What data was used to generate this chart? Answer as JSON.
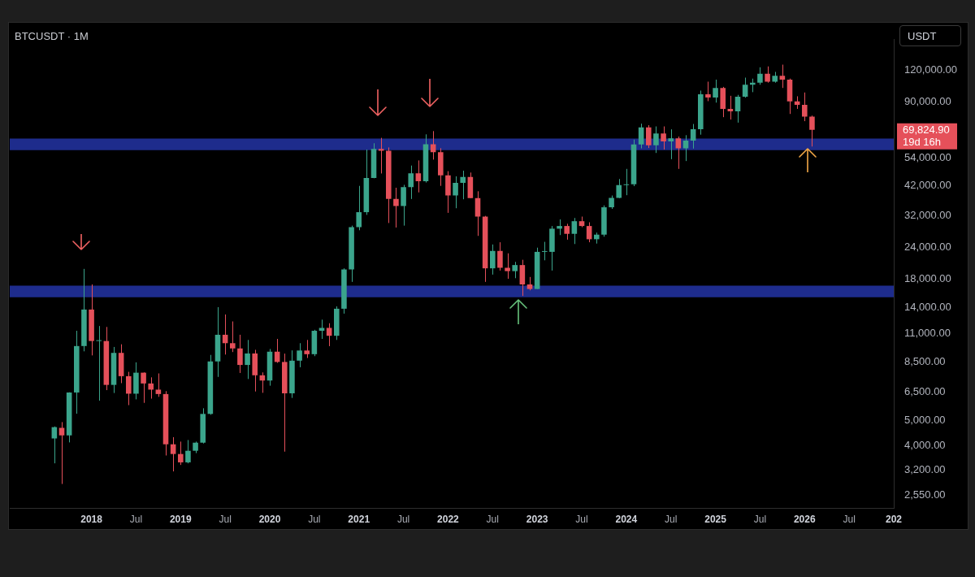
{
  "chart_data": {
    "type": "candlestick",
    "title": "BTCUSDT · 1M",
    "ylabel": "USDT",
    "log": true,
    "x": [
      "2017-08",
      "2017-09",
      "2017-10",
      "2017-11",
      "2017-12",
      "2018-01",
      "2018-02",
      "2018-03",
      "2018-04",
      "2018-05",
      "2018-06",
      "2018-07",
      "2018-08",
      "2018-09",
      "2018-10",
      "2018-11",
      "2018-12",
      "2019-01",
      "2019-02",
      "2019-03",
      "2019-04",
      "2019-05",
      "2019-06",
      "2019-07",
      "2019-08",
      "2019-09",
      "2019-10",
      "2019-11",
      "2019-12",
      "2020-01",
      "2020-02",
      "2020-03",
      "2020-04",
      "2020-05",
      "2020-06",
      "2020-07",
      "2020-08",
      "2020-09",
      "2020-10",
      "2020-11",
      "2020-12",
      "2021-01",
      "2021-02",
      "2021-03",
      "2021-04",
      "2021-05",
      "2021-06",
      "2021-07",
      "2021-08",
      "2021-09",
      "2021-10",
      "2021-11",
      "2021-12",
      "2022-01",
      "2022-02",
      "2022-03",
      "2022-04",
      "2022-05",
      "2022-06",
      "2022-07",
      "2022-08",
      "2022-09",
      "2022-10",
      "2022-11",
      "2022-12",
      "2023-01",
      "2023-02",
      "2023-03",
      "2023-04",
      "2023-05",
      "2023-06",
      "2023-07",
      "2023-08",
      "2023-09",
      "2023-10",
      "2023-11",
      "2023-12",
      "2024-01",
      "2024-02",
      "2024-03",
      "2024-04",
      "2024-05",
      "2024-06",
      "2024-07",
      "2024-08",
      "2024-09",
      "2024-10",
      "2024-11",
      "2024-12",
      "2025-01",
      "2025-02",
      "2025-03",
      "2025-04",
      "2025-05",
      "2025-06",
      "2025-07",
      "2025-08",
      "2025-09",
      "2025-10",
      "2025-11",
      "2025-12",
      "2026-01",
      "2026-02"
    ],
    "ohlc": [
      [
        4260,
        4750,
        3400,
        4720
      ],
      [
        4690,
        4940,
        2820,
        4380
      ],
      [
        4380,
        6470,
        4110,
        6460
      ],
      [
        6460,
        11300,
        5330,
        9840
      ],
      [
        9840,
        19800,
        9380,
        13700
      ],
      [
        13700,
        17200,
        9040,
        10300
      ],
      [
        10300,
        11800,
        6000,
        10300
      ],
      [
        10300,
        11700,
        6600,
        6920
      ],
      [
        6920,
        9760,
        6430,
        9250
      ],
      [
        9250,
        10000,
        7030,
        7490
      ],
      [
        7490,
        7790,
        5760,
        6390
      ],
      [
        6390,
        8490,
        6070,
        7730
      ],
      [
        7730,
        7750,
        5880,
        7010
      ],
      [
        7010,
        7410,
        6110,
        6630
      ],
      [
        6630,
        7680,
        6210,
        6370
      ],
      [
        6370,
        6540,
        3650,
        4040
      ],
      [
        4040,
        4310,
        3160,
        3700
      ],
      [
        3700,
        4140,
        3350,
        3430
      ],
      [
        3430,
        4200,
        3400,
        3810
      ],
      [
        3810,
        4140,
        3730,
        4100
      ],
      [
        4100,
        5600,
        4070,
        5320
      ],
      [
        5320,
        9080,
        5280,
        8560
      ],
      [
        8560,
        14000,
        7440,
        10900
      ],
      [
        10900,
        13100,
        9110,
        10100
      ],
      [
        10100,
        12300,
        9320,
        9630
      ],
      [
        9630,
        10900,
        7710,
        8290
      ],
      [
        8290,
        10400,
        7300,
        9200
      ],
      [
        9200,
        9510,
        6520,
        7550
      ],
      [
        7550,
        7750,
        6440,
        7200
      ],
      [
        7200,
        9580,
        6870,
        9350
      ],
      [
        9350,
        10500,
        8450,
        8520
      ],
      [
        8520,
        9190,
        3780,
        6410
      ],
      [
        6410,
        9460,
        6150,
        8620
      ],
      [
        8620,
        10100,
        8120,
        9450
      ],
      [
        9450,
        10400,
        8830,
        9140
      ],
      [
        9140,
        11400,
        8980,
        11300
      ],
      [
        11300,
        12500,
        10500,
        11600
      ],
      [
        11600,
        12100,
        9830,
        10800
      ],
      [
        10800,
        14100,
        10400,
        13800
      ],
      [
        13800,
        19900,
        13200,
        19700
      ],
      [
        19700,
        29300,
        17600,
        28900
      ],
      [
        28900,
        42000,
        28100,
        33100
      ],
      [
        33100,
        58400,
        32300,
        45100
      ],
      [
        45100,
        61800,
        45000,
        58700
      ],
      [
        58700,
        64900,
        47000,
        57700
      ],
      [
        57700,
        59500,
        30000,
        37300
      ],
      [
        37300,
        41300,
        28800,
        35000
      ],
      [
        35000,
        42400,
        29300,
        41500
      ],
      [
        41500,
        50500,
        37300,
        47100
      ],
      [
        47100,
        52900,
        39600,
        43800
      ],
      [
        43800,
        67000,
        43300,
        61300
      ],
      [
        61300,
        69000,
        53300,
        57000
      ],
      [
        57000,
        59100,
        42000,
        46200
      ],
      [
        46200,
        48000,
        32900,
        38500
      ],
      [
        38500,
        45800,
        34300,
        43200
      ],
      [
        43200,
        48200,
        37200,
        45500
      ],
      [
        45500,
        47400,
        37600,
        37600
      ],
      [
        37600,
        40000,
        26700,
        31800
      ],
      [
        31800,
        32000,
        17600,
        19900
      ],
      [
        19900,
        24700,
        18800,
        23300
      ],
      [
        23300,
        25200,
        19500,
        20000
      ],
      [
        20000,
        22800,
        18100,
        19400
      ],
      [
        19400,
        21100,
        18200,
        20500
      ],
      [
        20500,
        21500,
        15500,
        17200
      ],
      [
        17200,
        18400,
        16300,
        16500
      ],
      [
        16500,
        24000,
        16500,
        23100
      ],
      [
        23100,
        25300,
        21400,
        23100
      ],
      [
        23100,
        29200,
        19500,
        28500
      ],
      [
        28500,
        31000,
        26900,
        29200
      ],
      [
        29200,
        29800,
        25800,
        27200
      ],
      [
        27200,
        31400,
        24800,
        30500
      ],
      [
        30500,
        31800,
        28900,
        29200
      ],
      [
        29200,
        30200,
        25200,
        25900
      ],
      [
        25900,
        27500,
        24900,
        27000
      ],
      [
        27000,
        35200,
        26500,
        34600
      ],
      [
        34600,
        38500,
        34100,
        37700
      ],
      [
        37700,
        44700,
        37600,
        42300
      ],
      [
        42300,
        49000,
        38600,
        42600
      ],
      [
        42600,
        63900,
        41900,
        61100
      ],
      [
        61100,
        73800,
        59000,
        71300
      ],
      [
        71300,
        72800,
        59200,
        60700
      ],
      [
        60700,
        72000,
        56600,
        67500
      ],
      [
        67500,
        72000,
        58400,
        62800
      ],
      [
        62800,
        70100,
        53500,
        64600
      ],
      [
        64600,
        65700,
        49000,
        59000
      ],
      [
        59000,
        66500,
        52600,
        63300
      ],
      [
        63300,
        73600,
        58900,
        70200
      ],
      [
        70200,
        99600,
        66800,
        96400
      ],
      [
        96400,
        108000,
        90500,
        93600
      ],
      [
        93600,
        110000,
        89300,
        102000
      ],
      [
        102000,
        103000,
        78300,
        84400
      ],
      [
        84400,
        95000,
        76600,
        82600
      ],
      [
        82600,
        95800,
        74500,
        94200
      ],
      [
        94200,
        112000,
        93400,
        105000
      ],
      [
        105000,
        111000,
        98200,
        107000
      ],
      [
        107000,
        123000,
        105000,
        116000
      ],
      [
        116000,
        124000,
        107000,
        108000
      ],
      [
        108000,
        118000,
        107000,
        114000
      ],
      [
        114000,
        126000,
        102000,
        110000
      ],
      [
        110000,
        111000,
        80600,
        90400
      ],
      [
        90400,
        94600,
        84400,
        87600
      ],
      [
        87600,
        97900,
        75500,
        78700
      ],
      [
        78700,
        79400,
        60000,
        69824.9
      ]
    ],
    "colors": [
      "#3ba58c",
      "#e5505a",
      "#3ba58c",
      "#3ba58c",
      "#3ba58c",
      "#e5505a",
      "#3ba58c",
      "#e5505a",
      "#3ba58c",
      "#e5505a",
      "#e5505a",
      "#3ba58c",
      "#e5505a",
      "#e5505a",
      "#e5505a",
      "#e5505a",
      "#e5505a",
      "#e5505a",
      "#3ba58c",
      "#3ba58c",
      "#3ba58c",
      "#3ba58c",
      "#3ba58c",
      "#e5505a",
      "#e5505a",
      "#e5505a",
      "#3ba58c",
      "#e5505a",
      "#e5505a",
      "#3ba58c",
      "#e5505a",
      "#e5505a",
      "#3ba58c",
      "#3ba58c",
      "#e5505a",
      "#3ba58c",
      "#3ba58c",
      "#e5505a",
      "#3ba58c",
      "#3ba58c",
      "#3ba58c",
      "#3ba58c",
      "#3ba58c",
      "#3ba58c",
      "#e5505a",
      "#e5505a",
      "#e5505a",
      "#3ba58c",
      "#3ba58c",
      "#e5505a",
      "#3ba58c",
      "#e5505a",
      "#e5505a",
      "#e5505a",
      "#3ba58c",
      "#3ba58c",
      "#e5505a",
      "#e5505a",
      "#e5505a",
      "#3ba58c",
      "#e5505a",
      "#e5505a",
      "#3ba58c",
      "#e5505a",
      "#e5505a",
      "#3ba58c",
      "#3ba58c",
      "#3ba58c",
      "#3ba58c",
      "#e5505a",
      "#3ba58c",
      "#e5505a",
      "#e5505a",
      "#3ba58c",
      "#3ba58c",
      "#3ba58c",
      "#3ba58c",
      "#3ba58c",
      "#3ba58c",
      "#3ba58c",
      "#e5505a",
      "#3ba58c",
      "#e5505a",
      "#3ba58c",
      "#e5505a",
      "#3ba58c",
      "#3ba58c",
      "#3ba58c",
      "#e5505a",
      "#3ba58c",
      "#e5505a",
      "#e5505a",
      "#3ba58c",
      "#3ba58c",
      "#3ba58c",
      "#3ba58c",
      "#e5505a",
      "#3ba58c",
      "#e5505a",
      "#e5505a",
      "#e5505a",
      "#e5505a",
      "#e5505a"
    ],
    "xlim": [
      "2017-02",
      "2027-01"
    ],
    "xticks": [
      {
        "value": "2018-01",
        "label": "2018"
      },
      {
        "value": "2018-07",
        "label": "Jul"
      },
      {
        "value": "2019-01",
        "label": "2019"
      },
      {
        "value": "2019-07",
        "label": "Jul"
      },
      {
        "value": "2020-01",
        "label": "2020"
      },
      {
        "value": "2020-07",
        "label": "Jul"
      },
      {
        "value": "2021-01",
        "label": "2021"
      },
      {
        "value": "2021-07",
        "label": "Jul"
      },
      {
        "value": "2022-01",
        "label": "2022"
      },
      {
        "value": "2022-07",
        "label": "Jul"
      },
      {
        "value": "2023-01",
        "label": "2023"
      },
      {
        "value": "2023-07",
        "label": "Jul"
      },
      {
        "value": "2024-01",
        "label": "2024"
      },
      {
        "value": "2024-07",
        "label": "Jul"
      },
      {
        "value": "2025-01",
        "label": "2025"
      },
      {
        "value": "2025-07",
        "label": "Jul"
      },
      {
        "value": "2026-01",
        "label": "2026"
      },
      {
        "value": "2026-07",
        "label": "Jul"
      },
      {
        "value": "2027-01",
        "label": "202"
      }
    ],
    "ylim": [
      2270,
      158000
    ],
    "yticks": [
      {
        "value": 2550,
        "label": "2,550.00"
      },
      {
        "value": 3200,
        "label": "3,200.00"
      },
      {
        "value": 4000,
        "label": "4,000.00"
      },
      {
        "value": 5000,
        "label": "5,000.00"
      },
      {
        "value": 6500,
        "label": "6,500.00"
      },
      {
        "value": 8500,
        "label": "8,500.00"
      },
      {
        "value": 11000,
        "label": "11,000.00"
      },
      {
        "value": 14000,
        "label": "14,000.00"
      },
      {
        "value": 18000,
        "label": "18,000.00"
      },
      {
        "value": 24000,
        "label": "24,000.00"
      },
      {
        "value": 32000,
        "label": "32,000.00"
      },
      {
        "value": 42000,
        "label": "42,000.00"
      },
      {
        "value": 54000,
        "label": "54,000.00"
      },
      {
        "value": 90000,
        "label": "90,000.00"
      },
      {
        "value": 120000,
        "label": "120,000.00"
      }
    ],
    "bands": [
      {
        "axis": "y",
        "from": 15300,
        "to": 17000,
        "color": "#1e2c8c"
      },
      {
        "axis": "y",
        "from": 58100,
        "to": 64500,
        "color": "#1e2c8c"
      }
    ],
    "annotations": [
      "69,824.90",
      "19d 16h"
    ]
  }
}
